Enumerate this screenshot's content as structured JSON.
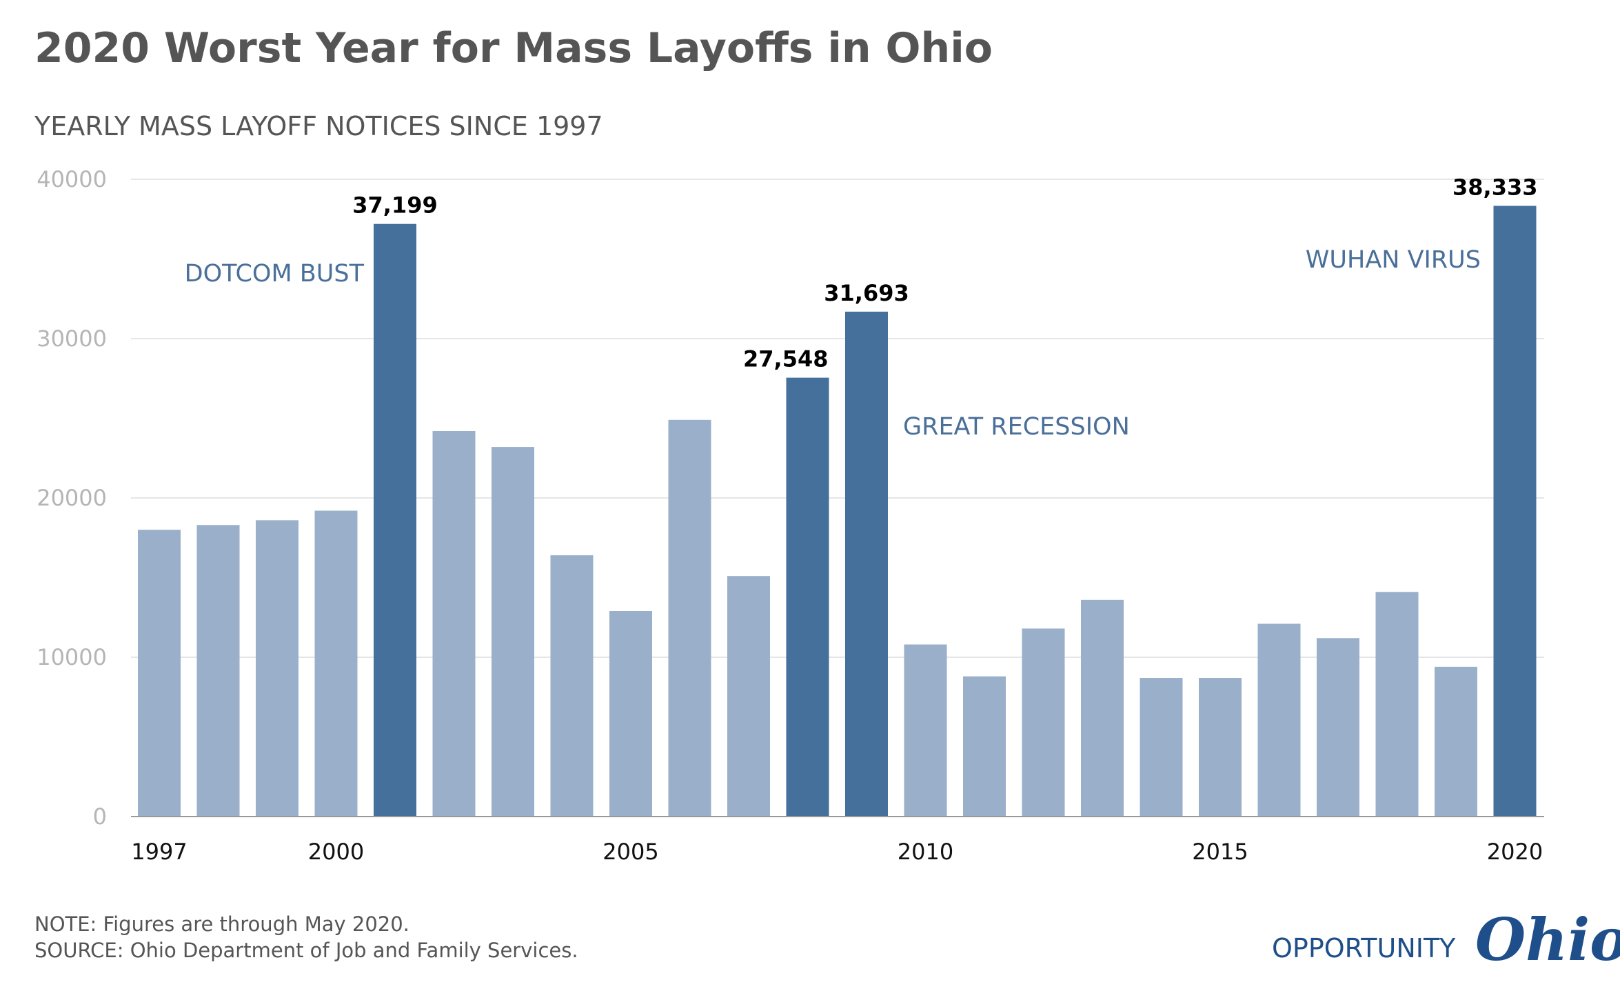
{
  "title": "2020 Worst Year for Mass Layoffs in Ohio",
  "subtitle": "YEARLY MASS LAYOFF NOTICES SINCE 1997",
  "chart_data": {
    "type": "bar",
    "categories": [
      1997,
      1998,
      1999,
      2000,
      2001,
      2002,
      2003,
      2004,
      2005,
      2006,
      2007,
      2008,
      2009,
      2010,
      2011,
      2012,
      2013,
      2014,
      2015,
      2016,
      2017,
      2018,
      2019,
      2020
    ],
    "values": [
      18000,
      18300,
      18600,
      19200,
      37199,
      24200,
      23200,
      16400,
      12900,
      24900,
      15100,
      27548,
      31693,
      10800,
      8800,
      11800,
      13600,
      8700,
      8700,
      12100,
      11200,
      14100,
      9400,
      38333
    ],
    "highlighted": [
      2001,
      2008,
      2009,
      2020
    ],
    "data_labels": [
      {
        "year": 2001,
        "text": "37,199"
      },
      {
        "year": 2008,
        "text": "27,548"
      },
      {
        "year": 2009,
        "text": "31,693"
      },
      {
        "year": 2020,
        "text": "38,333"
      }
    ],
    "annotations": [
      {
        "text": "DOTCOM BUST",
        "near_year": 2001
      },
      {
        "text": "GREAT RECESSION",
        "near_year": 2009
      },
      {
        "text": "WUHAN VIRUS",
        "near_year": 2020
      }
    ],
    "yticks": [
      "40000",
      "30000",
      "20000",
      "10000",
      "0"
    ],
    "ytick_values": [
      40000,
      30000,
      20000,
      10000,
      0
    ],
    "xticks": [
      "1997",
      "2000",
      "2005",
      "2010",
      "2015",
      "2020"
    ],
    "xtick_years": [
      1997,
      2000,
      2005,
      2010,
      2015,
      2020
    ],
    "ylim": [
      0,
      40000
    ],
    "grid": true,
    "xlabel": "",
    "ylabel": ""
  },
  "colors": {
    "bar_normal": "#9aafca",
    "bar_highlight": "#44709b",
    "annotation": "#4a6f99"
  },
  "footnote": {
    "note": "NOTE: Figures are through May 2020.",
    "source": "SOURCE: Ohio Department of Job and Family Services."
  },
  "logo": {
    "word": "OPPORTUNITY",
    "script": "Ohio"
  }
}
